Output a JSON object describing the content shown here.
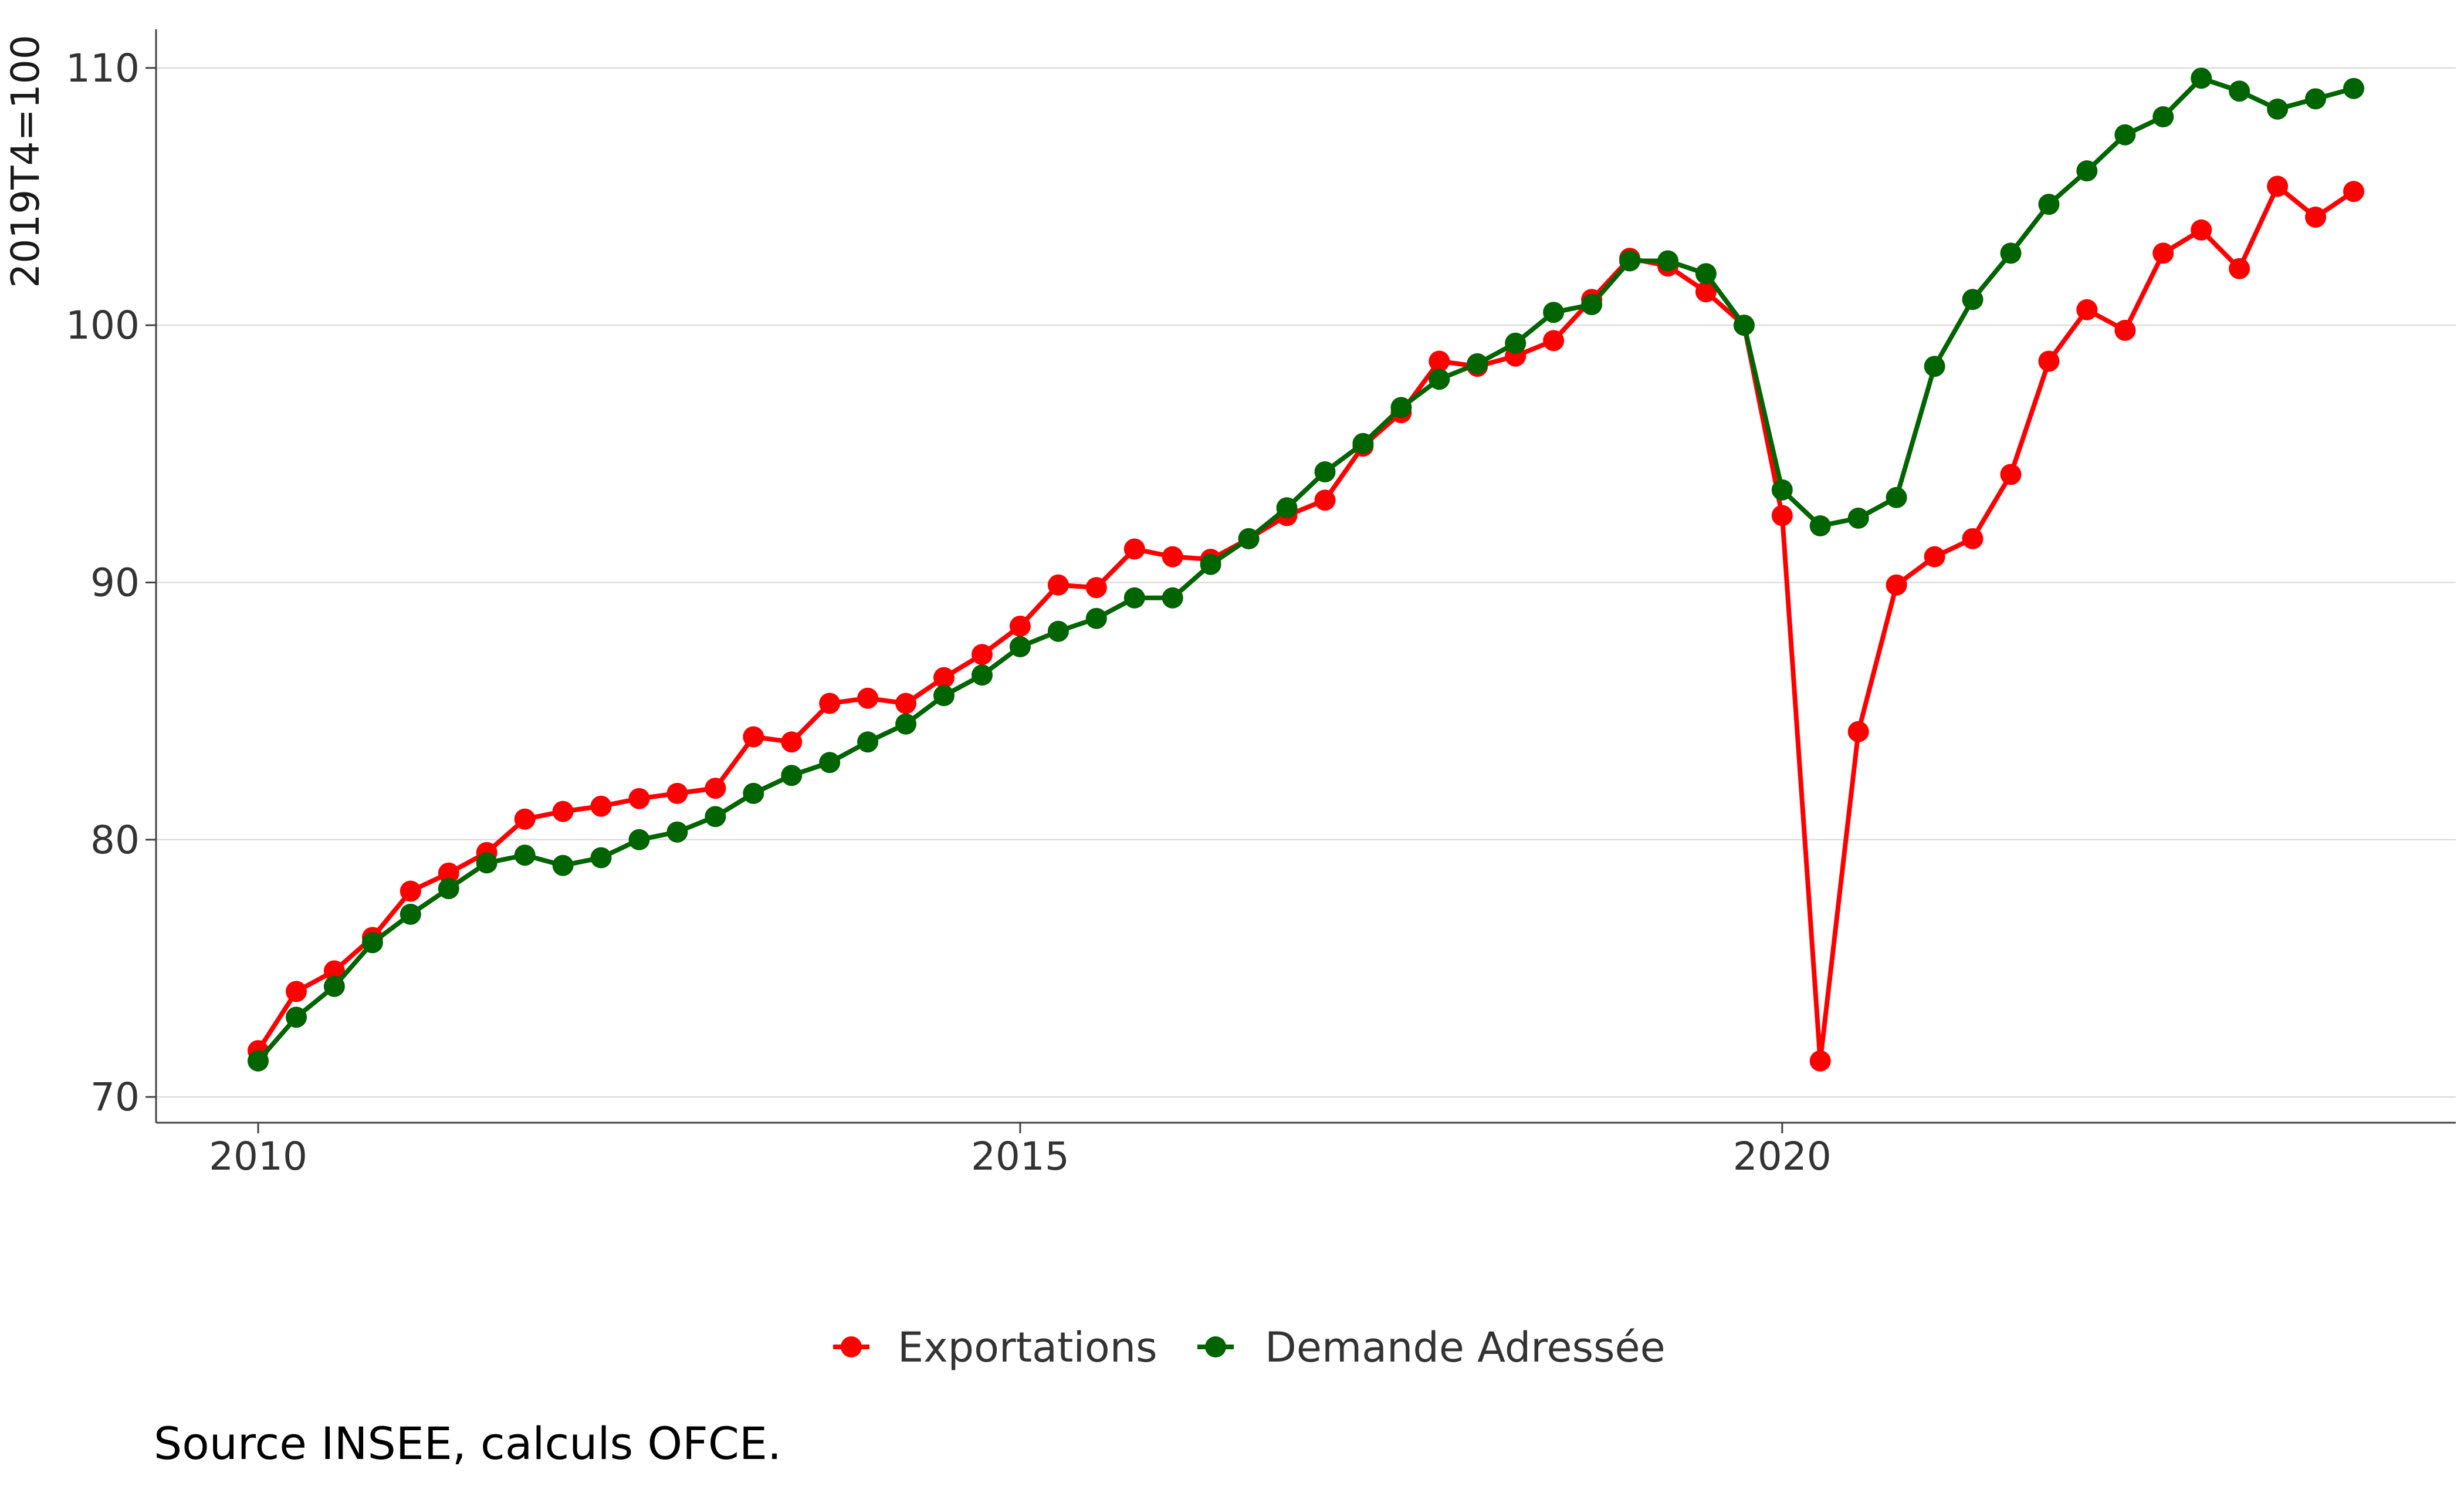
{
  "chart_data": {
    "type": "line",
    "ylabel": "2019T4=100",
    "xlabel": "",
    "ylim": [
      69,
      111.5
    ],
    "xlim": [
      2009.33,
      2024.42
    ],
    "yticks": [
      70,
      80,
      90,
      100,
      110
    ],
    "xticks": [
      2010,
      2015,
      2020
    ],
    "grid": true,
    "legend_position": "bottom",
    "x": [
      2010.0,
      2010.25,
      2010.5,
      2010.75,
      2011.0,
      2011.25,
      2011.5,
      2011.75,
      2012.0,
      2012.25,
      2012.5,
      2012.75,
      2013.0,
      2013.25,
      2013.5,
      2013.75,
      2014.0,
      2014.25,
      2014.5,
      2014.75,
      2015.0,
      2015.25,
      2015.5,
      2015.75,
      2016.0,
      2016.25,
      2016.5,
      2016.75,
      2017.0,
      2017.25,
      2017.5,
      2017.75,
      2018.0,
      2018.25,
      2018.5,
      2018.75,
      2019.0,
      2019.25,
      2019.5,
      2019.75,
      2020.0,
      2020.25,
      2020.5,
      2020.75,
      2021.0,
      2021.25,
      2021.5,
      2021.75,
      2022.0,
      2022.25,
      2022.5,
      2022.75,
      2023.0,
      2023.25,
      2023.5,
      2023.75
    ],
    "series": [
      {
        "name": "Exportations",
        "color": "#ff0000",
        "values": [
          71.8,
          74.1,
          74.9,
          76.2,
          78.0,
          78.7,
          79.5,
          80.8,
          81.1,
          81.3,
          81.6,
          81.8,
          82.0,
          84.0,
          83.8,
          85.3,
          85.5,
          85.3,
          86.3,
          87.2,
          88.3,
          89.9,
          89.8,
          91.3,
          91.0,
          90.9,
          91.7,
          92.6,
          93.2,
          95.3,
          96.6,
          98.6,
          98.4,
          98.8,
          99.4,
          101.0,
          102.6,
          102.3,
          101.3,
          100.0,
          92.6,
          71.4,
          84.2,
          89.9,
          91.0,
          91.7,
          94.2,
          98.6,
          100.6,
          99.8,
          102.8,
          103.7,
          102.2,
          105.4,
          104.2,
          105.2
        ]
      },
      {
        "name": "Demande Adressée",
        "color": "#006400",
        "values": [
          71.4,
          73.1,
          74.3,
          76.0,
          77.1,
          78.1,
          79.1,
          79.4,
          79.0,
          79.3,
          80.0,
          80.3,
          80.9,
          81.8,
          82.5,
          83.0,
          83.8,
          84.5,
          85.6,
          86.4,
          87.5,
          88.1,
          88.6,
          89.4,
          89.4,
          90.7,
          91.7,
          92.9,
          94.3,
          95.4,
          96.8,
          97.9,
          98.5,
          99.3,
          100.5,
          100.8,
          102.5,
          102.5,
          102.0,
          100.0,
          93.6,
          92.2,
          92.5,
          93.3,
          98.4,
          101.0,
          102.8,
          104.7,
          106.0,
          107.4,
          108.1,
          109.6,
          109.1,
          108.4,
          108.8,
          109.2
        ]
      }
    ]
  },
  "source": "Source INSEE, calculs OFCE."
}
